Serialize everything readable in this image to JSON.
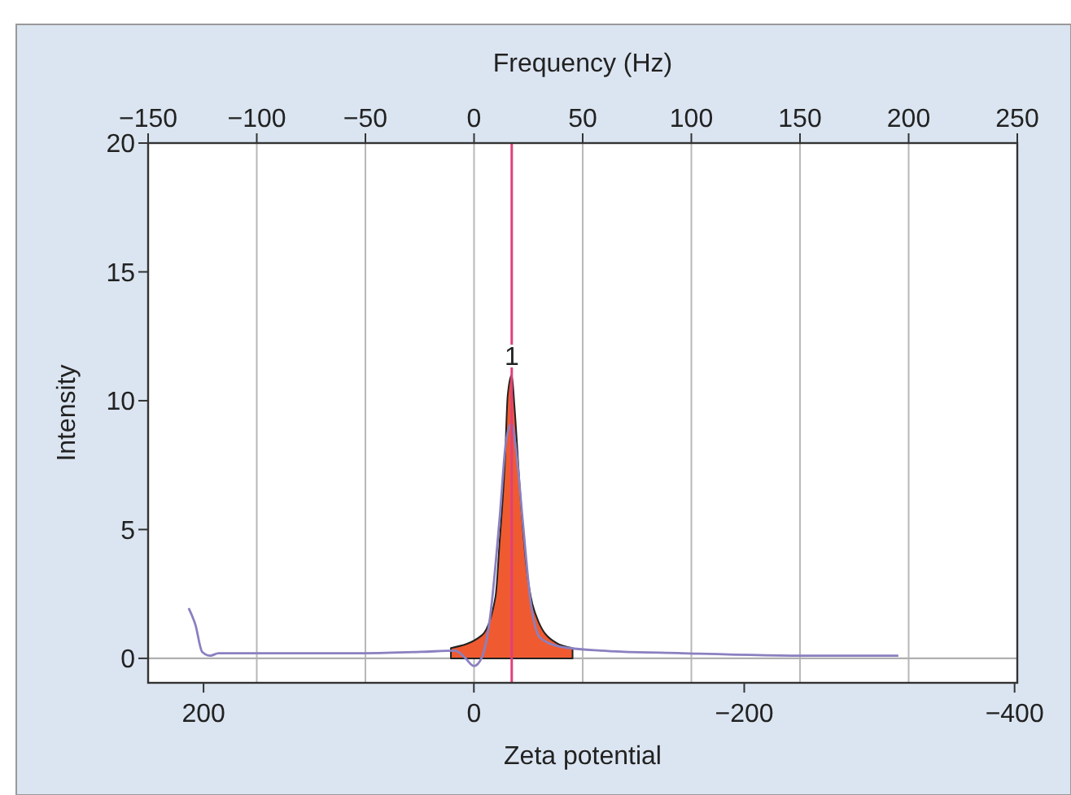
{
  "chart_data": {
    "type": "line",
    "xlabel": "Zeta potential",
    "x2label": "Frequency (Hz)",
    "ylabel": "Intensity",
    "xlim": [
      241,
      -402
    ],
    "xticks": [
      200,
      0,
      {
        "value": -200,
        "label": "−200"
      },
      {
        "value": -400,
        "label": "−400"
      }
    ],
    "x2lim": [
      -150,
      250
    ],
    "x2ticks": [
      {
        "value": -150,
        "label": "−150"
      },
      {
        "value": -100,
        "label": "−100"
      },
      {
        "value": -50,
        "label": "−50"
      },
      0,
      50,
      100,
      150,
      200,
      250
    ],
    "ylim": [
      -0.95,
      20
    ],
    "yticks": [
      0,
      5,
      10,
      15,
      20
    ],
    "grid": "x",
    "series": [
      {
        "type": "area",
        "color": "#f05a30",
        "x": [
          17,
          -6,
          -16,
          -19,
          -23,
          -25,
          -28,
          -30,
          -34,
          -39,
          -48,
          -61,
          -73
        ],
        "values": [
          0.4,
          0.9,
          2.4,
          4.5,
          7.7,
          10.2,
          11.0,
          9.8,
          6.6,
          3.5,
          1.4,
          0.6,
          0.4
        ]
      },
      {
        "color": "#8a80c0",
        "x": [
          211,
          206,
          201,
          195,
          189,
          183,
          81,
          39,
          14,
          7,
          0,
          -6,
          -12,
          -19,
          -24,
          -28,
          -31,
          -36,
          -42,
          -49,
          -64,
          -94,
          -154,
          -251,
          -314
        ],
        "values": [
          1.95,
          1.3,
          0.25,
          0.1,
          0.2,
          0.2,
          0.2,
          0.25,
          0.3,
          0.05,
          -0.3,
          0.05,
          1.6,
          5.4,
          8.5,
          9.1,
          8.2,
          5.4,
          2.2,
          0.8,
          0.45,
          0.3,
          0.2,
          0.1,
          0.1
        ]
      }
    ],
    "ref_lines": [
      {
        "axis": "y",
        "value": 0,
        "color": "#b0b0b0"
      },
      {
        "axis": "x",
        "value": -28,
        "color": "#e0407a"
      }
    ],
    "annotations": [
      {
        "text": "1",
        "x": -28,
        "y": 11.0
      }
    ]
  }
}
